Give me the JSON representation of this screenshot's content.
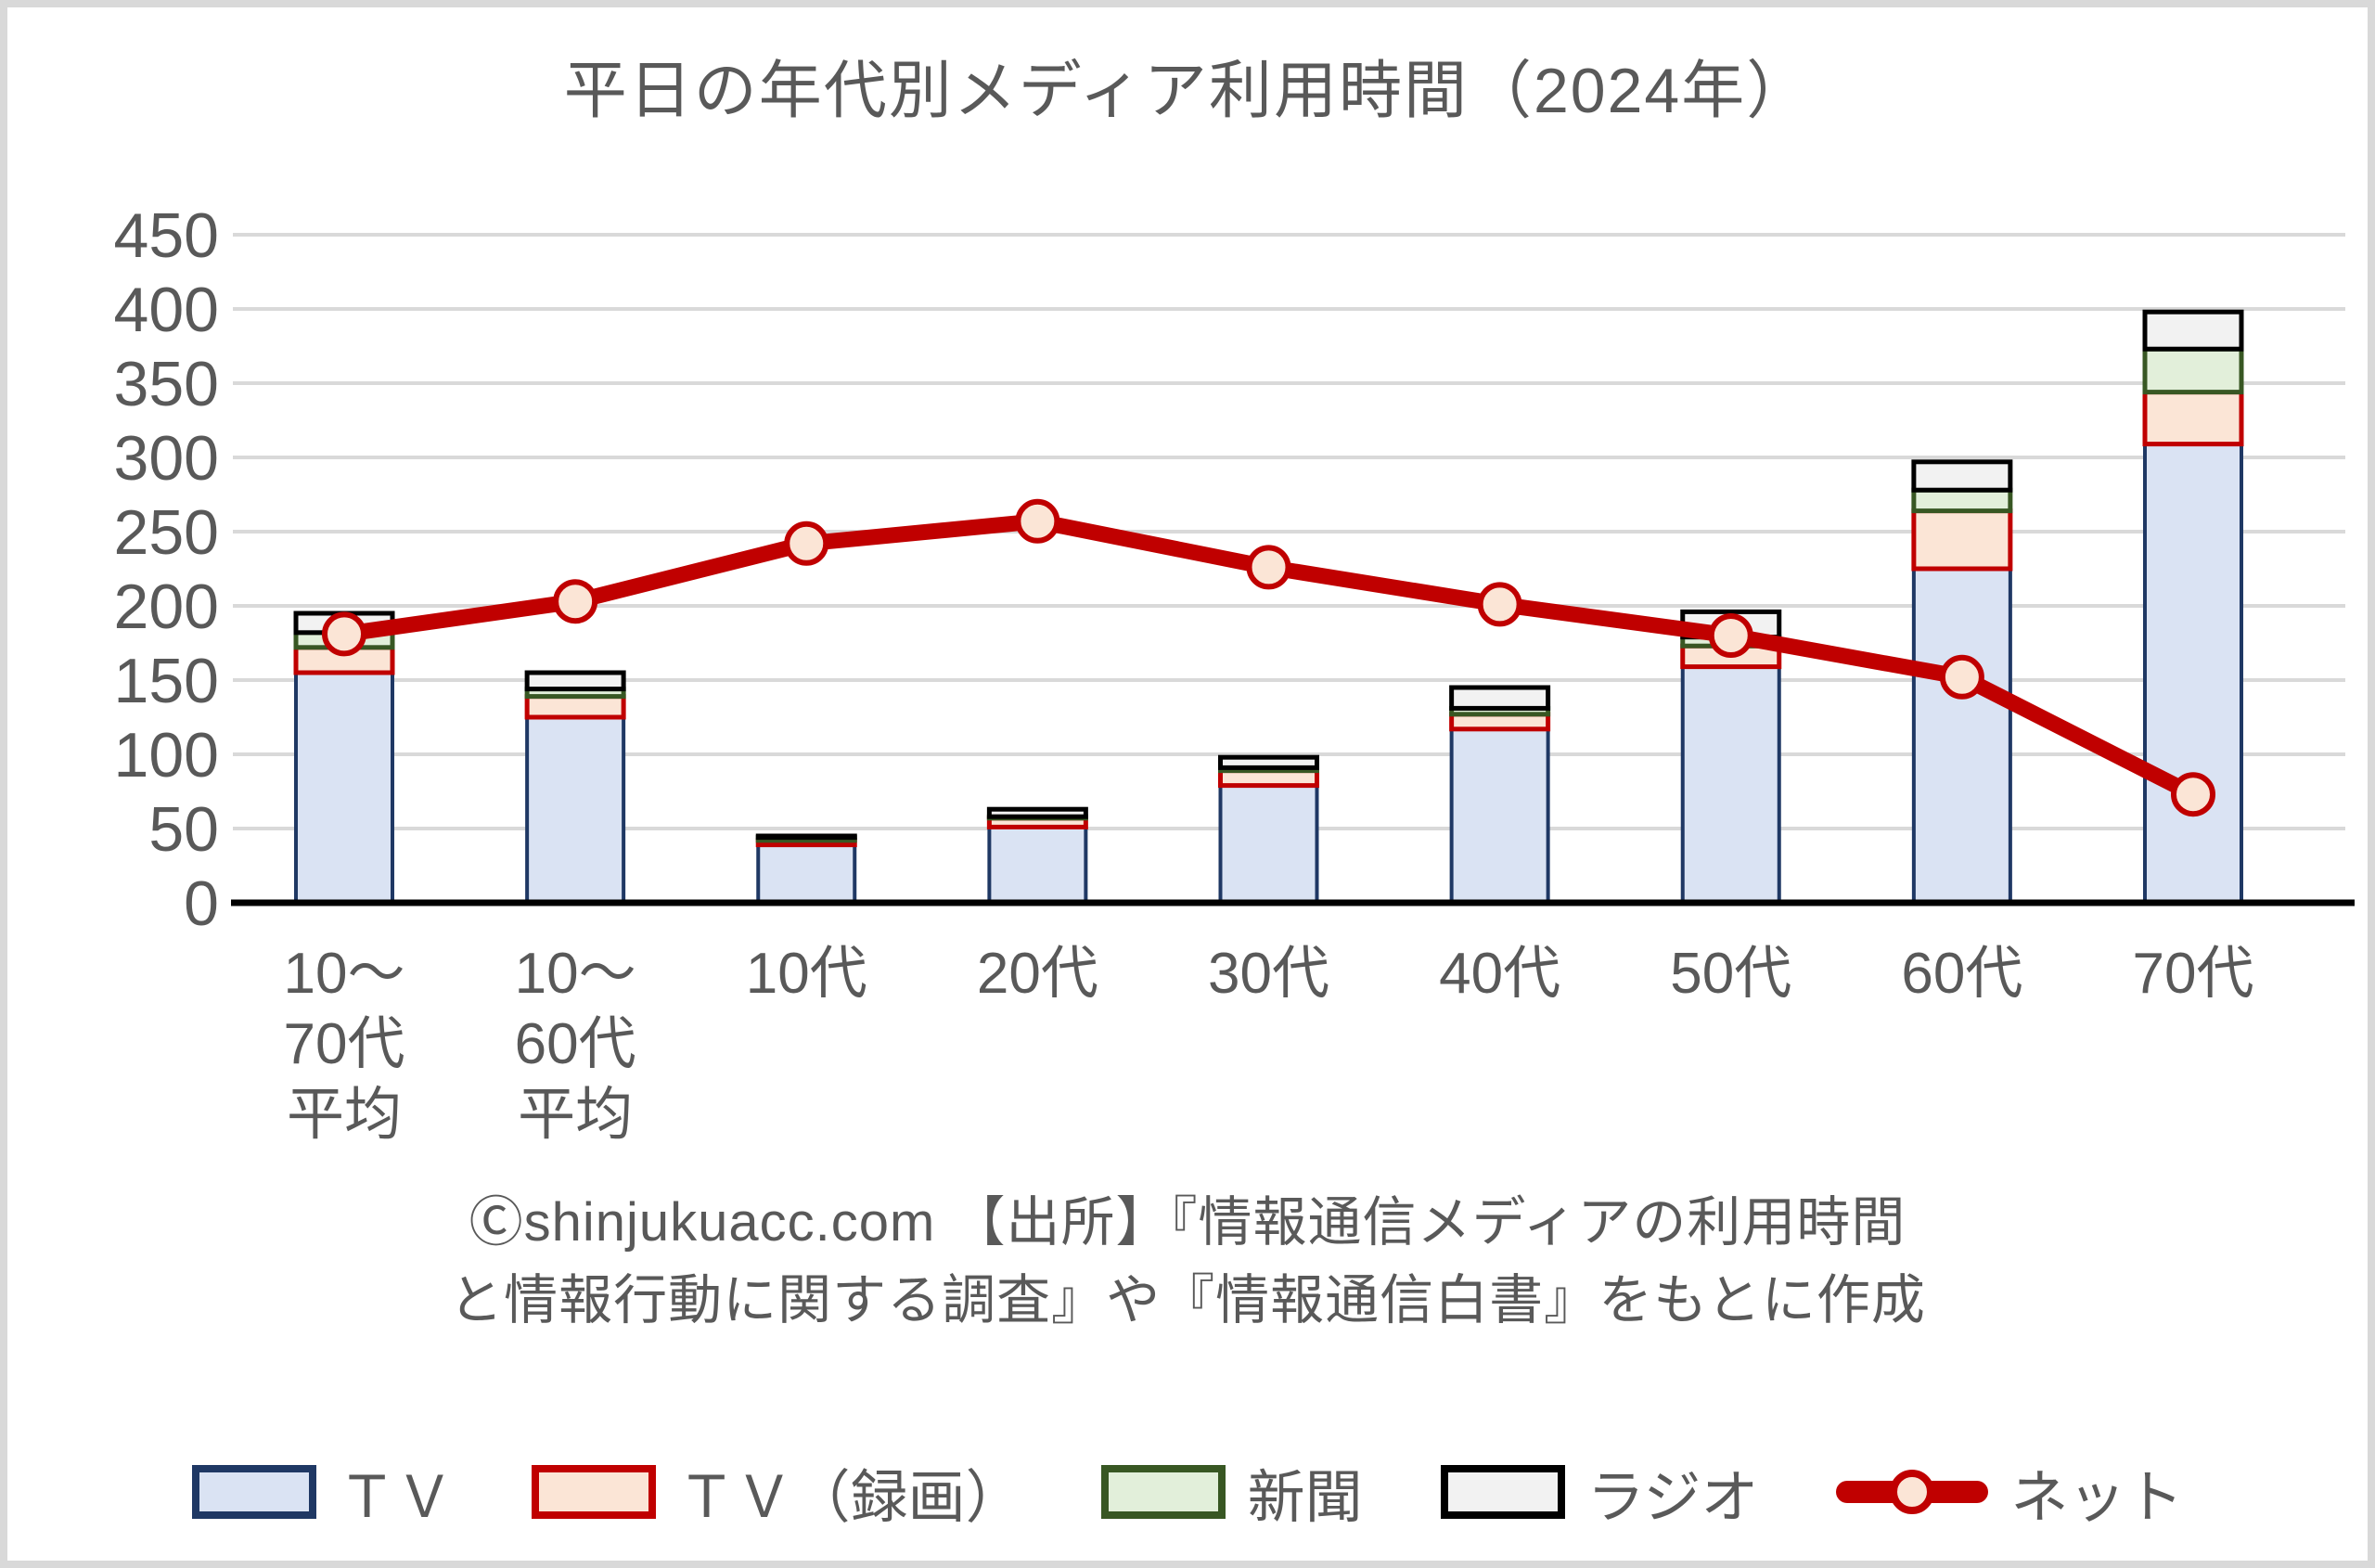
{
  "title": "平日の年代別メディア利用時間（2024年）",
  "caption": {
    "line1": "Ⓒshinjukuacc.com 【出所】『情報通信メディアの利用時間",
    "line2": "と情報行動に関する調査』や『情報通信白書』をもとに作成"
  },
  "colors": {
    "text": "#595959",
    "grid": "#d9d9d9",
    "axis": "#000000",
    "tv_fill": "#dae3f3",
    "tv_border": "#1f3864",
    "rec_fill": "#fbe5d6",
    "rec_border": "#c00000",
    "news_fill": "#e2efda",
    "news_border": "#385723",
    "radio_fill": "#f2f2f2",
    "radio_border": "#000000",
    "net_line": "#c00000",
    "net_marker_fill": "#fbe5d6"
  },
  "chart_data": {
    "type": "bar",
    "subtype": "stacked-bar-with-line",
    "title": "平日の年代別メディア利用時間（2024年）",
    "xlabel": "",
    "ylabel": "",
    "ylim": [
      0,
      450
    ],
    "ytick_step": 50,
    "ytick_labels": [
      "450",
      "400",
      "350",
      "300",
      "250",
      "200",
      "150",
      "100",
      "50",
      "0"
    ],
    "grid": true,
    "legend_position": "bottom",
    "categories": [
      "10〜70代平均",
      "10〜60代平均",
      "10代",
      "20代",
      "30代",
      "40代",
      "50代",
      "60代",
      "70代"
    ],
    "category_label_lines": [
      [
        "10〜",
        "70代",
        "平均"
      ],
      [
        "10〜",
        "60代",
        "平均"
      ],
      [
        "10代"
      ],
      [
        "20代"
      ],
      [
        "30代"
      ],
      [
        "40代"
      ],
      [
        "50代"
      ],
      [
        "60代"
      ],
      [
        "70代"
      ]
    ],
    "series": [
      {
        "id": "tv",
        "name": "ＴＶ",
        "swatch": "box",
        "fill": "#dae3f3",
        "border": "#1f3864",
        "stroke_width": 4,
        "values": [
          155,
          125,
          39,
          51,
          79,
          117,
          159,
          225,
          309
        ]
      },
      {
        "id": "tv-rec",
        "name": "ＴＶ（録画）",
        "swatch": "box",
        "fill": "#fbe5d6",
        "border": "#c00000",
        "stroke_width": 5,
        "values": [
          17,
          14,
          3,
          6,
          10,
          10,
          14,
          39,
          35
        ]
      },
      {
        "id": "newspaper",
        "name": "新聞",
        "swatch": "box",
        "fill": "#e2efda",
        "border": "#385723",
        "stroke_width": 5,
        "values": [
          10,
          5,
          2,
          1,
          2,
          4,
          6,
          14,
          29
        ]
      },
      {
        "id": "radio",
        "name": "ラジオ",
        "swatch": "box",
        "fill": "#f2f2f2",
        "border": "#000000",
        "stroke_width": 5,
        "values": [
          13,
          11,
          1,
          5,
          7,
          14,
          17,
          19,
          25
        ]
      }
    ],
    "line_series": {
      "id": "net",
      "name": "ネット",
      "swatch": "line",
      "color": "#c00000",
      "marker_fill": "#fbe5d6",
      "values": [
        181,
        203,
        242,
        257,
        226,
        201,
        180,
        152,
        73
      ]
    }
  }
}
